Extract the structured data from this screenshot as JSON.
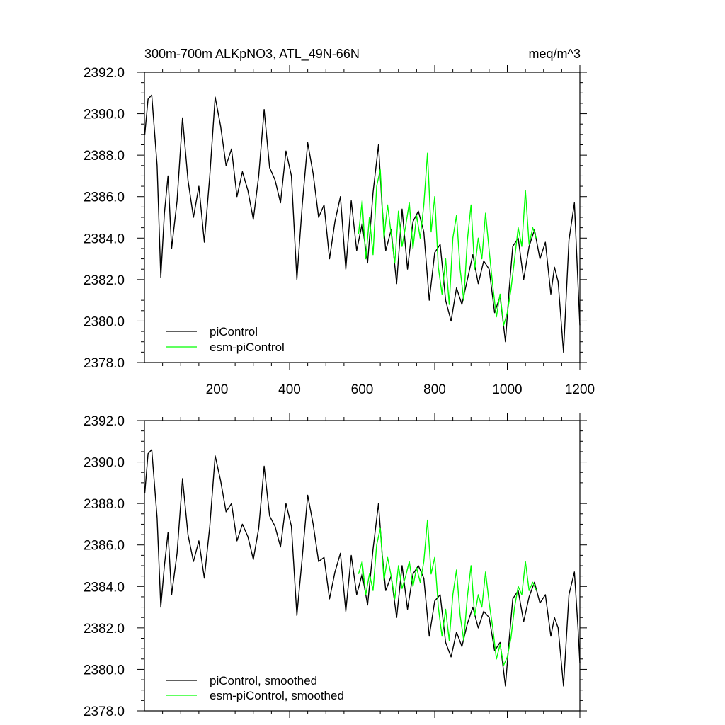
{
  "chart_data": [
    {
      "type": "line",
      "title": "300m-700m ALKpNO3, ATL_49N-66N",
      "units": "meq/m^3",
      "xlim": [
        0,
        1200
      ],
      "ylim": [
        2378.0,
        2392.0
      ],
      "yticks": [
        "2392.0",
        "2390.0",
        "2388.0",
        "2386.0",
        "2384.0",
        "2382.0",
        "2380.0",
        "2378.0"
      ],
      "xticks": [
        "200",
        "400",
        "600",
        "800",
        "1000",
        "1200"
      ],
      "legend_position": "bottom-left",
      "grid": false,
      "series": [
        {
          "name": "piControl",
          "color": "#000000",
          "x": [
            1,
            10,
            20,
            35,
            45,
            55,
            65,
            75,
            90,
            105,
            120,
            135,
            150,
            165,
            180,
            195,
            210,
            225,
            240,
            255,
            270,
            285,
            300,
            315,
            330,
            345,
            360,
            375,
            390,
            405,
            420,
            435,
            450,
            465,
            480,
            495,
            510,
            525,
            540,
            555,
            570,
            585,
            600,
            615,
            630,
            645,
            655,
            665,
            680,
            695,
            710,
            725,
            740,
            755,
            770,
            785,
            800,
            815,
            830,
            845,
            860,
            875,
            890,
            905,
            920,
            935,
            950,
            965,
            980,
            995,
            1005,
            1015,
            1030,
            1045,
            1060,
            1075,
            1090,
            1105,
            1120,
            1130,
            1140,
            1155,
            1170,
            1185,
            1195,
            1200
          ],
          "y": [
            2389.0,
            2390.7,
            2390.9,
            2387.5,
            2382.1,
            2385.2,
            2387.0,
            2383.5,
            2385.8,
            2389.8,
            2386.8,
            2385.0,
            2386.5,
            2383.8,
            2387.0,
            2390.8,
            2389.4,
            2387.5,
            2388.3,
            2386.0,
            2387.2,
            2386.3,
            2384.9,
            2387.0,
            2390.2,
            2387.4,
            2386.8,
            2385.7,
            2388.2,
            2387.0,
            2382.0,
            2385.6,
            2388.6,
            2387.1,
            2385.0,
            2385.6,
            2383.0,
            2384.8,
            2386.0,
            2382.5,
            2385.8,
            2383.4,
            2384.7,
            2382.8,
            2386.2,
            2388.5,
            2385.5,
            2383.4,
            2384.4,
            2381.8,
            2385.4,
            2382.5,
            2384.8,
            2385.3,
            2384.3,
            2381.0,
            2383.3,
            2383.7,
            2381.0,
            2380.0,
            2381.6,
            2380.8,
            2382.0,
            2383.2,
            2381.8,
            2382.9,
            2382.5,
            2380.4,
            2381.2,
            2379.0,
            2381.5,
            2383.6,
            2384.0,
            2382.0,
            2383.6,
            2384.4,
            2383.0,
            2383.8,
            2381.3,
            2382.6,
            2381.9,
            2378.5,
            2383.9,
            2385.7,
            2381.8,
            2379.8
          ]
        },
        {
          "name": "esm-piControl",
          "color": "#00ff00",
          "x": [
            590,
            600,
            610,
            620,
            630,
            640,
            650,
            660,
            670,
            680,
            690,
            700,
            710,
            720,
            730,
            740,
            750,
            760,
            770,
            780,
            790,
            800,
            810,
            820,
            830,
            840,
            850,
            860,
            870,
            880,
            890,
            900,
            910,
            920,
            930,
            940,
            950,
            960,
            970,
            980,
            990,
            1000,
            1010,
            1020,
            1030,
            1040,
            1050,
            1060,
            1070,
            1080
          ],
          "y": [
            2384.2,
            2385.8,
            2383.0,
            2385.0,
            2383.2,
            2386.5,
            2387.3,
            2384.0,
            2385.6,
            2384.2,
            2382.8,
            2385.3,
            2383.6,
            2384.6,
            2385.7,
            2383.5,
            2385.1,
            2384.0,
            2385.6,
            2388.1,
            2384.3,
            2386.0,
            2382.6,
            2381.3,
            2383.0,
            2380.8,
            2384.0,
            2385.1,
            2382.5,
            2381.0,
            2383.9,
            2385.6,
            2382.5,
            2384.0,
            2383.0,
            2385.2,
            2383.4,
            2381.7,
            2380.2,
            2381.3,
            2379.8,
            2380.4,
            2381.5,
            2383.0,
            2384.5,
            2383.6,
            2386.3,
            2383.7,
            2384.5,
            2384.0
          ]
        }
      ]
    },
    {
      "type": "line",
      "xlim": [
        0,
        1200
      ],
      "ylim": [
        2378.0,
        2392.0
      ],
      "yticks": [
        "2392.0",
        "2390.0",
        "2388.0",
        "2386.0",
        "2384.0",
        "2382.0",
        "2380.0",
        "2378.0"
      ],
      "legend_position": "bottom-left",
      "grid": false,
      "series": [
        {
          "name": "piControl, smoothed",
          "color": "#000000",
          "x": [
            1,
            10,
            20,
            35,
            45,
            55,
            65,
            75,
            90,
            105,
            120,
            135,
            150,
            165,
            180,
            195,
            210,
            225,
            240,
            255,
            270,
            285,
            300,
            315,
            330,
            345,
            360,
            375,
            390,
            405,
            420,
            435,
            450,
            465,
            480,
            495,
            510,
            525,
            540,
            555,
            570,
            585,
            600,
            615,
            630,
            645,
            655,
            665,
            680,
            695,
            710,
            725,
            740,
            755,
            770,
            785,
            800,
            815,
            830,
            845,
            860,
            875,
            890,
            905,
            920,
            935,
            950,
            965,
            980,
            995,
            1005,
            1015,
            1030,
            1045,
            1060,
            1075,
            1090,
            1105,
            1120,
            1130,
            1140,
            1155,
            1170,
            1185,
            1195,
            1200
          ],
          "y": [
            2388.5,
            2390.4,
            2390.6,
            2387.3,
            2383.0,
            2385.0,
            2386.6,
            2383.6,
            2385.6,
            2389.2,
            2386.5,
            2385.2,
            2386.2,
            2384.4,
            2386.9,
            2390.3,
            2389.1,
            2387.6,
            2388.0,
            2386.2,
            2387.0,
            2386.4,
            2385.3,
            2386.8,
            2389.8,
            2387.4,
            2386.9,
            2385.9,
            2388.0,
            2386.9,
            2382.6,
            2385.4,
            2388.4,
            2387.0,
            2385.2,
            2385.4,
            2383.4,
            2384.7,
            2385.6,
            2382.8,
            2385.5,
            2383.6,
            2384.6,
            2383.1,
            2385.8,
            2388.0,
            2385.6,
            2383.8,
            2384.5,
            2382.5,
            2385.0,
            2382.9,
            2384.6,
            2385.0,
            2384.4,
            2381.6,
            2383.3,
            2383.6,
            2381.3,
            2380.6,
            2381.8,
            2381.1,
            2382.2,
            2383.0,
            2382.0,
            2382.8,
            2382.5,
            2380.9,
            2381.3,
            2379.2,
            2381.4,
            2383.4,
            2383.8,
            2382.3,
            2383.5,
            2384.2,
            2383.2,
            2383.6,
            2381.6,
            2382.5,
            2382.0,
            2379.2,
            2383.6,
            2384.7,
            2382.0,
            2380.3
          ]
        },
        {
          "name": "esm-piControl, smoothed",
          "color": "#00ff00",
          "x": [
            590,
            600,
            610,
            620,
            630,
            640,
            650,
            660,
            670,
            680,
            690,
            700,
            710,
            720,
            730,
            740,
            750,
            760,
            770,
            780,
            790,
            800,
            810,
            820,
            830,
            840,
            850,
            860,
            870,
            880,
            890,
            900,
            910,
            920,
            930,
            940,
            950,
            960,
            970,
            980,
            990,
            1000,
            1010,
            1020,
            1030,
            1040,
            1050,
            1060,
            1070,
            1080
          ],
          "y": [
            2384.6,
            2385.2,
            2383.6,
            2384.6,
            2383.8,
            2386.0,
            2386.8,
            2384.3,
            2385.4,
            2384.5,
            2383.4,
            2385.0,
            2383.9,
            2384.5,
            2385.2,
            2384.0,
            2384.9,
            2384.2,
            2385.2,
            2387.2,
            2384.6,
            2385.4,
            2383.0,
            2381.6,
            2382.9,
            2381.4,
            2383.6,
            2384.8,
            2382.6,
            2381.4,
            2383.5,
            2385.0,
            2382.6,
            2383.6,
            2383.0,
            2384.7,
            2383.2,
            2382.0,
            2380.5,
            2381.2,
            2380.2,
            2380.6,
            2381.5,
            2383.0,
            2384.0,
            2383.6,
            2385.2,
            2383.8,
            2384.2,
            2383.8
          ]
        }
      ]
    }
  ]
}
